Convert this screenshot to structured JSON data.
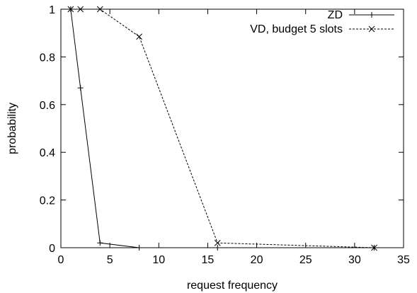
{
  "chart_data": {
    "type": "line",
    "title": "",
    "xlabel": "request frequency",
    "ylabel": "probability",
    "xlim": [
      0,
      35
    ],
    "ylim": [
      0,
      1
    ],
    "xticks": [
      0,
      5,
      10,
      15,
      20,
      25,
      30,
      35
    ],
    "yticks": [
      0,
      0.2,
      0.4,
      0.6,
      0.8,
      1
    ],
    "xtick_labels": [
      "0",
      "5",
      "10",
      "15",
      "20",
      "25",
      "30",
      "35"
    ],
    "ytick_labels": [
      "0",
      "0.2",
      "0.4",
      "0.6",
      "0.8",
      "1"
    ],
    "grid": false,
    "legend": "top-right",
    "series": [
      {
        "name": "ZD",
        "style": "solid",
        "marker": "plus",
        "color": "#000000",
        "x": [
          1,
          2,
          4,
          8,
          16,
          32
        ],
        "y": [
          1.0,
          0.67,
          0.02,
          0.0,
          0.0,
          0.0
        ]
      },
      {
        "name": "VD, budget 5 slots",
        "style": "dashed",
        "marker": "cross",
        "color": "#000000",
        "x": [
          1,
          2,
          4,
          8,
          16,
          32
        ],
        "y": [
          1.0,
          1.0,
          1.0,
          0.885,
          0.02,
          0.0
        ]
      }
    ]
  }
}
